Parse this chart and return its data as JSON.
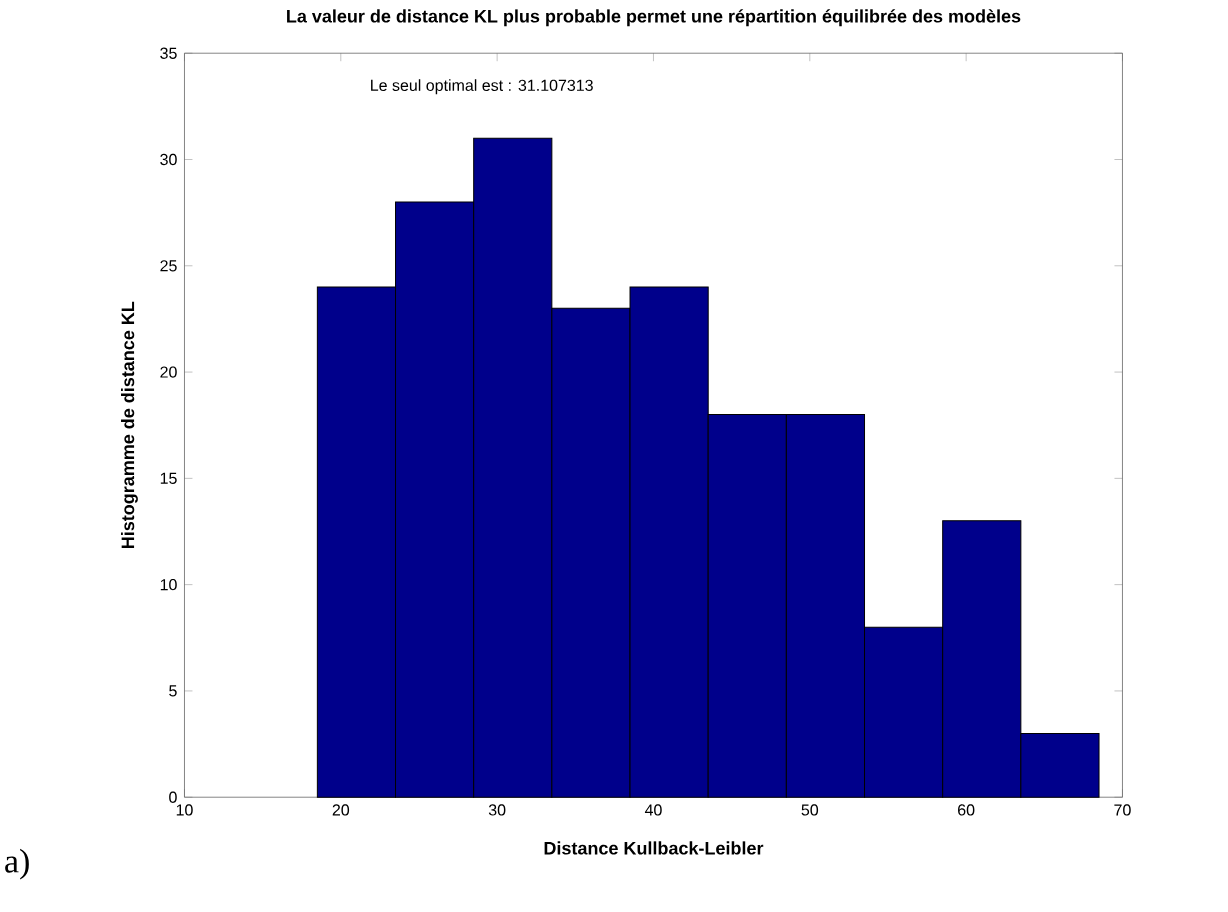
{
  "chart_data": {
    "type": "histogram",
    "title": "La valeur de distance KL plus probable permet une répartition équilibrée des modèles",
    "xlabel": "Distance Kullback-Leibler",
    "ylabel": "Histogramme de distance KL",
    "bins": [
      18.5,
      23.5,
      28.5,
      33.5,
      38.5,
      43.5,
      48.5,
      53.5,
      58.5,
      63.5,
      68.5
    ],
    "values": [
      24,
      28,
      31,
      23,
      24,
      18,
      18,
      8,
      13,
      3
    ],
    "color": "#00008b",
    "xlim": [
      10,
      70
    ],
    "xticks": [
      10,
      20,
      30,
      40,
      50,
      60,
      70
    ],
    "ylim": [
      0,
      35
    ],
    "yticks": [
      0,
      5,
      10,
      15,
      20,
      25,
      30,
      35
    ],
    "annotations": [
      "Le seul optimal est : 31.107313",
      "a)"
    ]
  }
}
